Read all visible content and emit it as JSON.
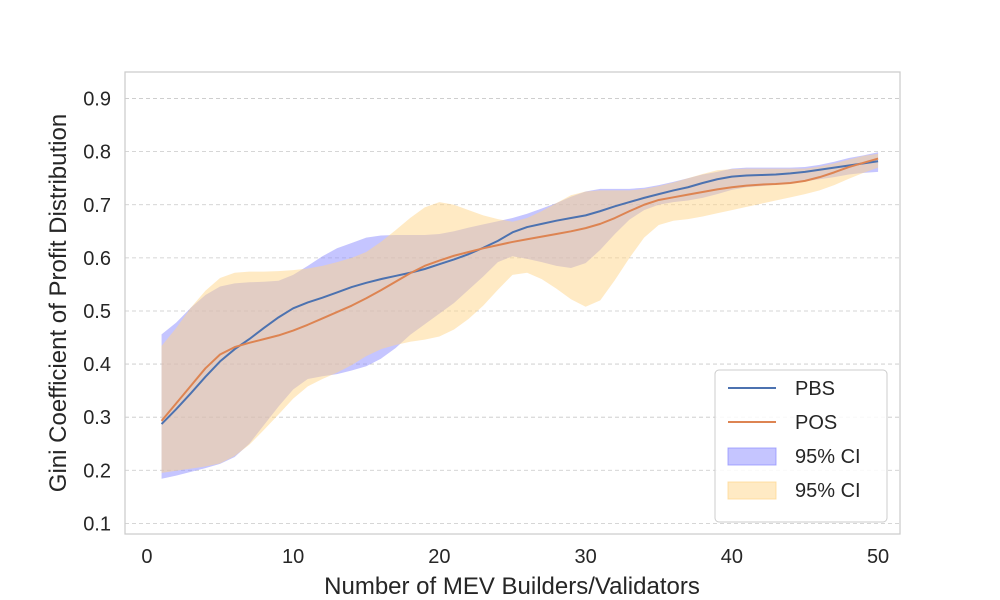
{
  "chart_data": {
    "type": "line",
    "xlabel": "Number of MEV Builders/Validators",
    "ylabel": "Gini Coefficient of Profit Distribution",
    "xlim": [
      -1.5,
      51.5
    ],
    "ylim": [
      0.08,
      0.95
    ],
    "x_ticks": [
      0,
      10,
      20,
      30,
      40,
      50
    ],
    "y_ticks": [
      0.1,
      0.2,
      0.3,
      0.4,
      0.5,
      0.6,
      0.7,
      0.8,
      0.9
    ],
    "grid": "horizontal-dashed",
    "legend_position": "bottom-right",
    "colors": {
      "pbs_line": "#4c72b0",
      "pos_line": "#dd8452",
      "pbs_band": "#8c8cff",
      "pos_band": "#ffd68a"
    },
    "series": [
      {
        "name": "PBS",
        "x": [
          1,
          2,
          3,
          4,
          5,
          6,
          7,
          8,
          9,
          10,
          11,
          12,
          13,
          14,
          15,
          16,
          17,
          18,
          19,
          20,
          21,
          22,
          23,
          24,
          25,
          26,
          27,
          28,
          29,
          30,
          31,
          32,
          33,
          34,
          35,
          36,
          37,
          38,
          39,
          40,
          41,
          42,
          43,
          44,
          45,
          46,
          47,
          48,
          49,
          50
        ],
        "y": [
          0.287,
          0.315,
          0.345,
          0.376,
          0.405,
          0.428,
          0.447,
          0.468,
          0.488,
          0.505,
          0.516,
          0.525,
          0.535,
          0.545,
          0.553,
          0.56,
          0.566,
          0.572,
          0.579,
          0.588,
          0.597,
          0.607,
          0.619,
          0.632,
          0.648,
          0.658,
          0.664,
          0.67,
          0.675,
          0.68,
          0.688,
          0.697,
          0.705,
          0.713,
          0.72,
          0.727,
          0.733,
          0.741,
          0.748,
          0.753,
          0.755,
          0.756,
          0.757,
          0.759,
          0.762,
          0.766,
          0.77,
          0.774,
          0.778,
          0.782
        ],
        "ci_lower": [
          0.184,
          0.19,
          0.197,
          0.204,
          0.212,
          0.225,
          0.25,
          0.285,
          0.32,
          0.352,
          0.372,
          0.377,
          0.381,
          0.388,
          0.396,
          0.41,
          0.43,
          0.455,
          0.475,
          0.495,
          0.515,
          0.54,
          0.565,
          0.592,
          0.603,
          0.598,
          0.592,
          0.585,
          0.581,
          0.59,
          0.615,
          0.645,
          0.672,
          0.69,
          0.7,
          0.705,
          0.708,
          0.713,
          0.72,
          0.728,
          0.733,
          0.735,
          0.738,
          0.741,
          0.744,
          0.748,
          0.752,
          0.757,
          0.76,
          0.762
        ],
        "ci_upper": [
          0.456,
          0.478,
          0.506,
          0.53,
          0.546,
          0.552,
          0.554,
          0.555,
          0.557,
          0.568,
          0.585,
          0.603,
          0.618,
          0.628,
          0.638,
          0.642,
          0.643,
          0.643,
          0.643,
          0.645,
          0.65,
          0.657,
          0.663,
          0.669,
          0.675,
          0.683,
          0.693,
          0.703,
          0.715,
          0.725,
          0.73,
          0.73,
          0.73,
          0.732,
          0.737,
          0.743,
          0.75,
          0.757,
          0.762,
          0.768,
          0.77,
          0.77,
          0.77,
          0.77,
          0.771,
          0.775,
          0.781,
          0.788,
          0.793,
          0.799
        ]
      },
      {
        "name": "POS",
        "x": [
          1,
          2,
          3,
          4,
          5,
          6,
          7,
          8,
          9,
          10,
          11,
          12,
          13,
          14,
          15,
          16,
          17,
          18,
          19,
          20,
          21,
          22,
          23,
          24,
          25,
          26,
          27,
          28,
          29,
          30,
          31,
          32,
          33,
          34,
          35,
          36,
          37,
          38,
          39,
          40,
          41,
          42,
          43,
          44,
          45,
          46,
          47,
          48,
          49,
          50
        ],
        "y": [
          0.293,
          0.326,
          0.359,
          0.392,
          0.418,
          0.432,
          0.44,
          0.447,
          0.454,
          0.463,
          0.474,
          0.486,
          0.498,
          0.51,
          0.524,
          0.539,
          0.555,
          0.571,
          0.585,
          0.595,
          0.604,
          0.611,
          0.618,
          0.624,
          0.63,
          0.635,
          0.64,
          0.645,
          0.65,
          0.656,
          0.664,
          0.675,
          0.688,
          0.7,
          0.709,
          0.714,
          0.719,
          0.724,
          0.729,
          0.733,
          0.736,
          0.738,
          0.739,
          0.741,
          0.745,
          0.752,
          0.761,
          0.771,
          0.779,
          0.787
        ],
        "ci_lower": [
          0.195,
          0.199,
          0.203,
          0.207,
          0.213,
          0.227,
          0.248,
          0.276,
          0.305,
          0.335,
          0.358,
          0.372,
          0.384,
          0.398,
          0.415,
          0.428,
          0.436,
          0.442,
          0.446,
          0.452,
          0.465,
          0.485,
          0.51,
          0.54,
          0.568,
          0.572,
          0.56,
          0.542,
          0.522,
          0.508,
          0.52,
          0.558,
          0.6,
          0.638,
          0.662,
          0.67,
          0.673,
          0.678,
          0.684,
          0.69,
          0.696,
          0.702,
          0.708,
          0.714,
          0.72,
          0.727,
          0.737,
          0.749,
          0.76,
          0.77
        ],
        "ci_upper": [
          0.434,
          0.468,
          0.506,
          0.538,
          0.562,
          0.572,
          0.574,
          0.574,
          0.575,
          0.577,
          0.58,
          0.585,
          0.592,
          0.6,
          0.611,
          0.63,
          0.652,
          0.675,
          0.695,
          0.705,
          0.7,
          0.69,
          0.68,
          0.673,
          0.668,
          0.675,
          0.688,
          0.703,
          0.718,
          0.725,
          0.727,
          0.727,
          0.727,
          0.73,
          0.735,
          0.742,
          0.75,
          0.758,
          0.765,
          0.767,
          0.768,
          0.768,
          0.768,
          0.768,
          0.768,
          0.772,
          0.778,
          0.785,
          0.792,
          0.796
        ]
      }
    ],
    "legend": [
      {
        "label": "PBS",
        "kind": "line",
        "color_key": "pbs_line"
      },
      {
        "label": "POS",
        "kind": "line",
        "color_key": "pos_line"
      },
      {
        "label": "95% CI",
        "kind": "band",
        "color_key": "pbs_band"
      },
      {
        "label": "95% CI",
        "kind": "band",
        "color_key": "pos_band"
      }
    ]
  }
}
